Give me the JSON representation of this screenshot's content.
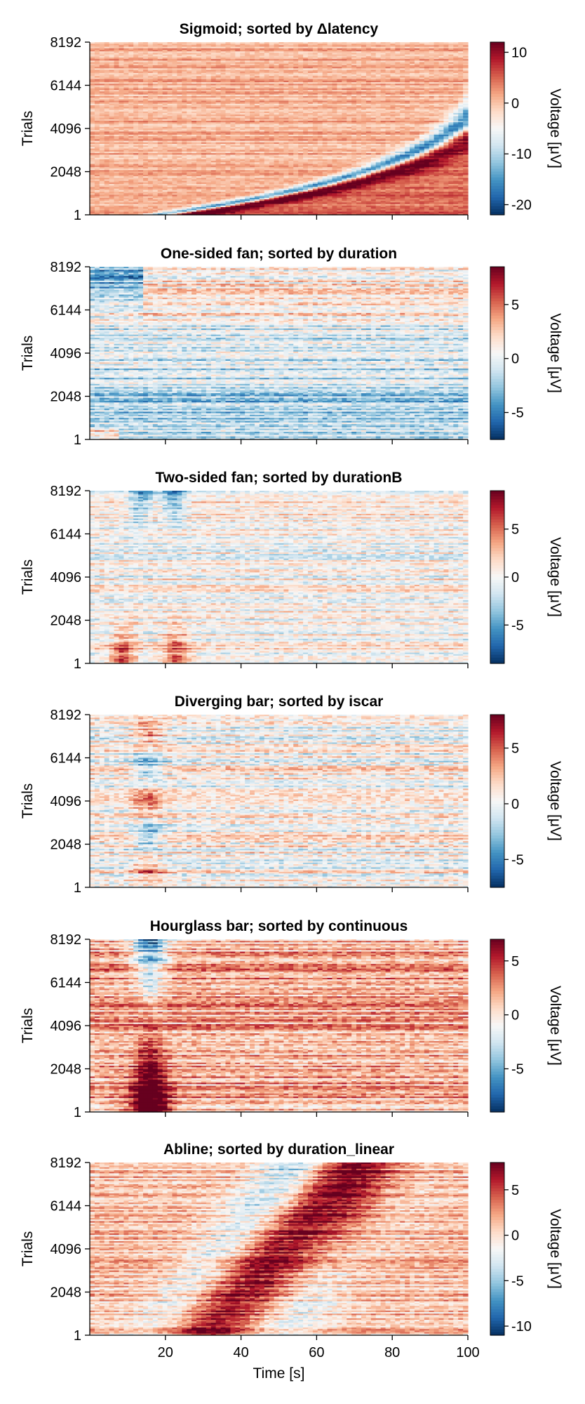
{
  "figure": {
    "xlabel": "Time [s]",
    "ylabel": "Trials",
    "colorbar_label": "Voltage [μV]",
    "colormap": [
      "#053061",
      "#2166ac",
      "#4393c3",
      "#92c5de",
      "#d1e5f0",
      "#f7f7f7",
      "#fddbc7",
      "#f4a582",
      "#d6604d",
      "#b2182b",
      "#67001f"
    ]
  },
  "chart_data": [
    {
      "type": "heatmap",
      "title": "Sigmoid; sorted by Δlatency",
      "xlabel": "",
      "ylabel": "Trials",
      "xlim": [
        0,
        100
      ],
      "xticks": [
        20,
        40,
        60,
        80,
        100
      ],
      "xticklabels": [],
      "ylim": [
        1,
        8192
      ],
      "yticks": [
        1,
        2048,
        4096,
        6144,
        8192
      ],
      "colorbar": {
        "label": "Voltage [μV]",
        "range": [
          -22,
          12
        ],
        "ticks": [
          -20,
          -10,
          0,
          10
        ]
      },
      "pattern": "sigmoid"
    },
    {
      "type": "heatmap",
      "title": "One-sided fan; sorted by duration",
      "xlabel": "",
      "ylabel": "Trials",
      "xlim": [
        0,
        100
      ],
      "xticks": [
        20,
        40,
        60,
        80,
        100
      ],
      "xticklabels": [],
      "ylim": [
        1,
        8192
      ],
      "yticks": [
        1,
        2048,
        4096,
        6144,
        8192
      ],
      "colorbar": {
        "label": "Voltage [μV]",
        "range": [
          -7.5,
          8.5
        ],
        "ticks": [
          -5,
          0,
          5
        ]
      },
      "pattern": "onesided"
    },
    {
      "type": "heatmap",
      "title": "Two-sided fan; sorted by durationB",
      "xlabel": "",
      "ylabel": "Trials",
      "xlim": [
        0,
        100
      ],
      "xticks": [
        20,
        40,
        60,
        80,
        100
      ],
      "xticklabels": [],
      "ylim": [
        1,
        8192
      ],
      "yticks": [
        1,
        2048,
        4096,
        6144,
        8192
      ],
      "colorbar": {
        "label": "Voltage [μV]",
        "range": [
          -9,
          9
        ],
        "ticks": [
          -5,
          0,
          5
        ]
      },
      "pattern": "twosided"
    },
    {
      "type": "heatmap",
      "title": "Diverging bar; sorted by iscar",
      "xlabel": "",
      "ylabel": "Trials",
      "xlim": [
        0,
        100
      ],
      "xticks": [
        20,
        40,
        60,
        80,
        100
      ],
      "xticklabels": [],
      "ylim": [
        1,
        8192
      ],
      "yticks": [
        1,
        2048,
        4096,
        6144,
        8192
      ],
      "colorbar": {
        "label": "Voltage [μV]",
        "range": [
          -7.5,
          8
        ],
        "ticks": [
          -5,
          0,
          5
        ]
      },
      "pattern": "diverging"
    },
    {
      "type": "heatmap",
      "title": "Hourglass bar; sorted by continuous",
      "xlabel": "",
      "ylabel": "Trials",
      "xlim": [
        0,
        100
      ],
      "xticks": [
        20,
        40,
        60,
        80,
        100
      ],
      "xticklabels": [],
      "ylim": [
        1,
        8192
      ],
      "yticks": [
        1,
        2048,
        4096,
        6144,
        8192
      ],
      "colorbar": {
        "label": "Voltage [μV]",
        "range": [
          -9,
          7
        ],
        "ticks": [
          -5,
          0,
          5
        ]
      },
      "pattern": "hourglass"
    },
    {
      "type": "heatmap",
      "title": "Abline; sorted by duration_linear",
      "xlabel": "Time [s]",
      "ylabel": "Trials",
      "xlim": [
        0,
        100
      ],
      "xticks": [
        20,
        40,
        60,
        80,
        100
      ],
      "xticklabels": [
        "20",
        "40",
        "60",
        "80",
        "100"
      ],
      "ylim": [
        1,
        8192
      ],
      "yticks": [
        1,
        2048,
        4096,
        6144,
        8192
      ],
      "colorbar": {
        "label": "Voltage [μV]",
        "range": [
          -11,
          8
        ],
        "ticks": [
          -10,
          -5,
          0,
          5
        ]
      },
      "pattern": "abline"
    }
  ]
}
